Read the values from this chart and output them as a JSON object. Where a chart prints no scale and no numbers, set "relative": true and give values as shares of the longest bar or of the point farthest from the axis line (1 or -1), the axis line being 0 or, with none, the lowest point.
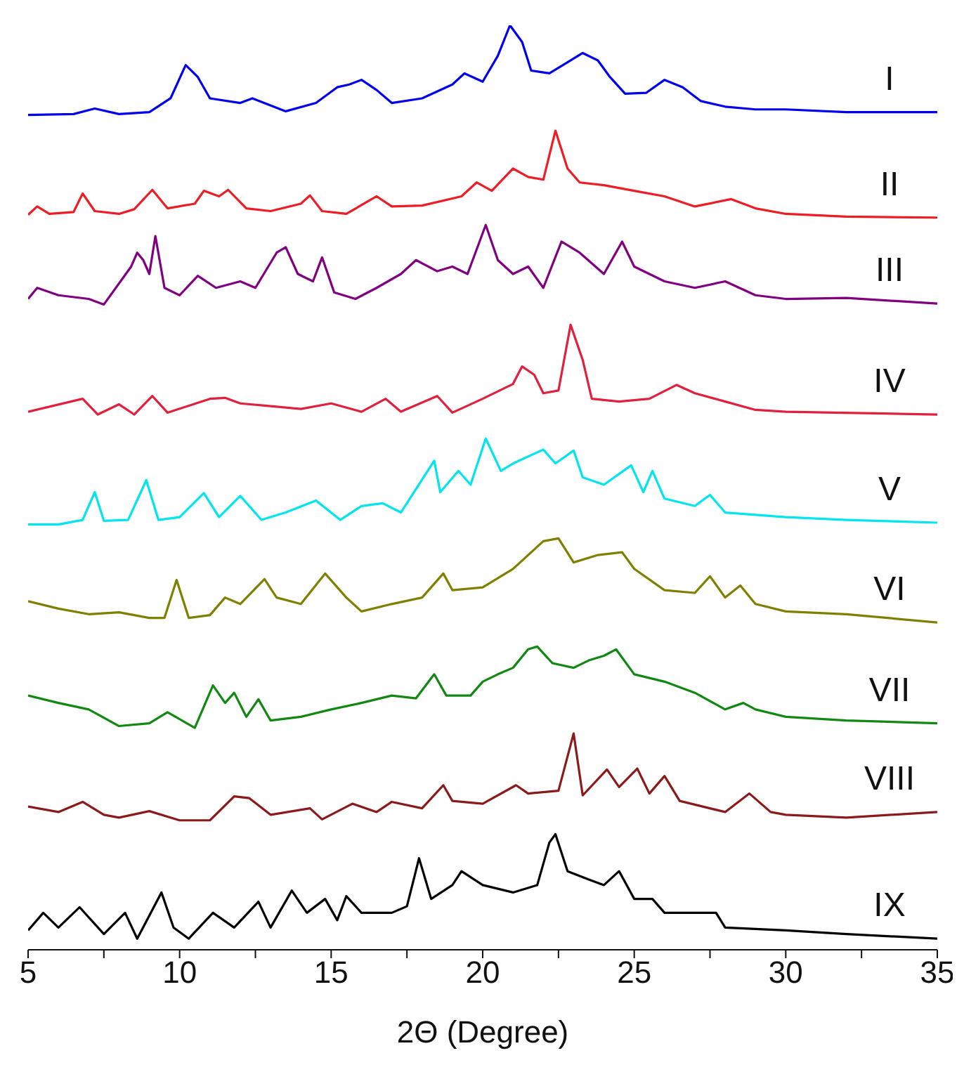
{
  "chart_data": {
    "type": "line",
    "xlabel": "2Θ (Degree)",
    "relative": true,
    "legend": false,
    "marker": "none",
    "line_style": "solid",
    "xlim": [
      5,
      35
    ],
    "xticks": [
      5,
      {
        "value": 7.5,
        "label": null
      },
      10,
      {
        "value": 12.5,
        "label": null
      },
      15,
      {
        "value": 17.5,
        "label": null
      },
      20,
      {
        "value": 22.5,
        "label": null
      },
      25,
      {
        "value": 27.5,
        "label": null
      },
      30,
      {
        "value": 32.5,
        "label": null
      },
      35
    ],
    "series": [
      {
        "name": "I",
        "color": "#0000ee",
        "x": [
          5,
          6.5,
          7.2,
          8,
          9,
          9.7,
          10.2,
          10.6,
          11,
          12,
          12.4,
          13.5,
          14.5,
          15.2,
          15.6,
          16,
          16.5,
          17,
          18,
          19,
          19.4,
          20,
          20.5,
          20.9,
          21.3,
          21.6,
          22.2,
          22.8,
          23.3,
          23.8,
          24.2,
          24.7,
          25.4,
          26,
          26.6,
          27.2,
          28,
          29,
          30,
          32,
          35
        ],
        "values": [
          0.903,
          0.904,
          0.91,
          0.904,
          0.906,
          0.921,
          0.957,
          0.944,
          0.921,
          0.916,
          0.921,
          0.907,
          0.916,
          0.933,
          0.936,
          0.941,
          0.93,
          0.916,
          0.921,
          0.936,
          0.948,
          0.939,
          0.967,
          1,
          0.982,
          0.951,
          0.948,
          0.96,
          0.97,
          0.962,
          0.944,
          0.926,
          0.927,
          0.941,
          0.933,
          0.918,
          0.912,
          0.909,
          0.909,
          0.906,
          0.906
        ]
      },
      {
        "name": "II",
        "color": "#ee1c24",
        "x": [
          5,
          5.3,
          5.7,
          6.5,
          6.8,
          7.2,
          8,
          8.5,
          9.1,
          9.6,
          10.5,
          10.8,
          11.3,
          11.6,
          12.2,
          13,
          14,
          14.3,
          14.7,
          15.5,
          16.5,
          17,
          18,
          19.3,
          19.8,
          20.3,
          21,
          21.5,
          22,
          22.4,
          22.8,
          23.2,
          24,
          25,
          26,
          27,
          28.2,
          29,
          30,
          32,
          35
        ],
        "values": [
          0.795,
          0.804,
          0.796,
          0.798,
          0.818,
          0.799,
          0.796,
          0.801,
          0.822,
          0.802,
          0.807,
          0.821,
          0.815,
          0.822,
          0.802,
          0.799,
          0.807,
          0.816,
          0.799,
          0.796,
          0.815,
          0.804,
          0.805,
          0.815,
          0.83,
          0.821,
          0.845,
          0.836,
          0.833,
          0.886,
          0.845,
          0.83,
          0.827,
          0.821,
          0.815,
          0.804,
          0.812,
          0.802,
          0.796,
          0.793,
          0.792
        ]
      },
      {
        "name": "III",
        "color": "#800080",
        "x": [
          5,
          5.3,
          6,
          7,
          7.5,
          8.4,
          8.6,
          8.8,
          9.0,
          9.2,
          9.5,
          10,
          10.6,
          11.2,
          12,
          12.5,
          13.2,
          13.5,
          13.9,
          14.4,
          14.7,
          15.1,
          15.8,
          16.5,
          17.3,
          17.8,
          18.5,
          19,
          19.5,
          20.1,
          20.5,
          21,
          21.5,
          22,
          22.6,
          23.2,
          24,
          24.6,
          25,
          26,
          27,
          28,
          29,
          30,
          32,
          35
        ],
        "values": [
          0.704,
          0.716,
          0.708,
          0.704,
          0.698,
          0.739,
          0.754,
          0.746,
          0.731,
          0.772,
          0.716,
          0.708,
          0.729,
          0.716,
          0.723,
          0.716,
          0.754,
          0.76,
          0.731,
          0.723,
          0.749,
          0.711,
          0.704,
          0.716,
          0.731,
          0.746,
          0.734,
          0.739,
          0.731,
          0.784,
          0.746,
          0.731,
          0.739,
          0.716,
          0.766,
          0.754,
          0.731,
          0.766,
          0.739,
          0.723,
          0.716,
          0.723,
          0.708,
          0.704,
          0.705,
          0.699
        ]
      },
      {
        "name": "IV",
        "color": "#e0203c",
        "x": [
          5,
          6.8,
          7.3,
          8,
          8.5,
          9.1,
          9.6,
          11,
          11.5,
          12,
          13,
          14,
          15,
          16,
          16.8,
          17.3,
          18.5,
          19,
          20,
          21,
          21.3,
          21.7,
          22,
          22.5,
          22.9,
          23.3,
          23.6,
          24.5,
          25.5,
          26.4,
          27,
          28,
          29,
          30,
          35
        ],
        "values": [
          0.582,
          0.596,
          0.579,
          0.59,
          0.579,
          0.599,
          0.581,
          0.596,
          0.597,
          0.591,
          0.588,
          0.585,
          0.591,
          0.582,
          0.596,
          0.582,
          0.599,
          0.581,
          0.596,
          0.612,
          0.631,
          0.622,
          0.602,
          0.605,
          0.676,
          0.638,
          0.596,
          0.593,
          0.596,
          0.611,
          0.602,
          0.593,
          0.584,
          0.582,
          0.579
        ]
      },
      {
        "name": "V",
        "color": "#00e5ee",
        "x": [
          5,
          6,
          6.8,
          7.2,
          7.5,
          8.3,
          8.9,
          9.3,
          10,
          10.8,
          11.3,
          12,
          12.7,
          13.5,
          14.5,
          15.3,
          16,
          16.7,
          17.3,
          18.4,
          18.6,
          19.2,
          19.6,
          20.1,
          20.6,
          21,
          22,
          22.4,
          23,
          23.3,
          24,
          24.9,
          25.3,
          25.6,
          26,
          27,
          27.5,
          28,
          30,
          32,
          35
        ],
        "values": [
          0.46,
          0.46,
          0.465,
          0.495,
          0.464,
          0.465,
          0.508,
          0.465,
          0.468,
          0.494,
          0.468,
          0.491,
          0.465,
          0.473,
          0.486,
          0.465,
          0.48,
          0.483,
          0.473,
          0.529,
          0.495,
          0.518,
          0.503,
          0.553,
          0.518,
          0.526,
          0.541,
          0.526,
          0.54,
          0.511,
          0.503,
          0.524,
          0.495,
          0.518,
          0.488,
          0.48,
          0.492,
          0.473,
          0.468,
          0.465,
          0.462
        ]
      },
      {
        "name": "VI",
        "color": "#808000",
        "x": [
          5,
          6,
          7,
          8,
          9,
          9.5,
          9.9,
          10.3,
          11,
          11.5,
          12,
          12.8,
          13.2,
          14,
          14.8,
          15.5,
          16,
          17,
          18,
          18.7,
          19,
          20,
          21,
          22,
          22.5,
          23,
          23.8,
          24.6,
          25,
          26,
          27,
          27.5,
          28,
          28.5,
          29,
          30,
          32,
          35
        ],
        "values": [
          0.377,
          0.369,
          0.363,
          0.365,
          0.359,
          0.359,
          0.4,
          0.359,
          0.362,
          0.381,
          0.374,
          0.401,
          0.381,
          0.374,
          0.407,
          0.381,
          0.366,
          0.374,
          0.381,
          0.407,
          0.389,
          0.392,
          0.412,
          0.442,
          0.445,
          0.419,
          0.427,
          0.43,
          0.412,
          0.389,
          0.386,
          0.404,
          0.381,
          0.394,
          0.374,
          0.366,
          0.363,
          0.354
        ]
      },
      {
        "name": "VII",
        "color": "#118811",
        "x": [
          5,
          6,
          7,
          8,
          9,
          9.6,
          10.5,
          11.1,
          11.5,
          11.8,
          12.2,
          12.6,
          13,
          14,
          15,
          16,
          17,
          17.8,
          18.4,
          18.8,
          19.6,
          20,
          20.5,
          21,
          21.5,
          21.8,
          22.3,
          23,
          23.5,
          24,
          24.4,
          25,
          26,
          27,
          28,
          28.6,
          29,
          30,
          32,
          35
        ],
        "values": [
          0.275,
          0.267,
          0.26,
          0.242,
          0.245,
          0.257,
          0.24,
          0.286,
          0.267,
          0.278,
          0.252,
          0.271,
          0.248,
          0.252,
          0.26,
          0.267,
          0.275,
          0.272,
          0.298,
          0.275,
          0.275,
          0.29,
          0.298,
          0.305,
          0.325,
          0.328,
          0.31,
          0.305,
          0.313,
          0.318,
          0.325,
          0.298,
          0.29,
          0.278,
          0.26,
          0.267,
          0.26,
          0.252,
          0.248,
          0.245
        ]
      },
      {
        "name": "VIII",
        "color": "#8b1a1a",
        "x": [
          5,
          6,
          6.8,
          7.5,
          8,
          9,
          10,
          11,
          11.8,
          12.3,
          13,
          14.3,
          14.7,
          15.7,
          16.5,
          17,
          18,
          18.7,
          19,
          20,
          21.1,
          21.5,
          22.5,
          23,
          23.3,
          24.1,
          24.5,
          25.1,
          25.5,
          26,
          26.5,
          28,
          28.8,
          29.5,
          30,
          32,
          35
        ],
        "values": [
          0.155,
          0.149,
          0.16,
          0.146,
          0.143,
          0.15,
          0.14,
          0.14,
          0.166,
          0.164,
          0.146,
          0.153,
          0.141,
          0.158,
          0.149,
          0.16,
          0.153,
          0.178,
          0.161,
          0.158,
          0.178,
          0.169,
          0.172,
          0.234,
          0.167,
          0.195,
          0.176,
          0.196,
          0.169,
          0.188,
          0.161,
          0.149,
          0.169,
          0.149,
          0.146,
          0.143,
          0.149
        ]
      },
      {
        "name": "IX",
        "color": "#000000",
        "x": [
          5,
          5.5,
          6,
          6.7,
          7.5,
          8.2,
          8.6,
          9.4,
          9.8,
          10.3,
          11.1,
          11.8,
          12.6,
          13,
          13.7,
          14.2,
          14.8,
          15.2,
          15.5,
          16,
          17,
          17.5,
          17.9,
          18.3,
          19,
          19.3,
          20,
          21,
          21.8,
          22.2,
          22.4,
          22.8,
          23.5,
          24,
          24.5,
          25,
          25.6,
          26,
          27,
          27.7,
          28,
          30,
          32,
          35
        ],
        "values": [
          0.021,
          0.04,
          0.024,
          0.046,
          0.017,
          0.04,
          0.012,
          0.062,
          0.024,
          0.012,
          0.04,
          0.024,
          0.052,
          0.024,
          0.064,
          0.04,
          0.055,
          0.032,
          0.058,
          0.04,
          0.04,
          0.047,
          0.099,
          0.055,
          0.07,
          0.085,
          0.07,
          0.062,
          0.07,
          0.116,
          0.125,
          0.085,
          0.076,
          0.07,
          0.085,
          0.055,
          0.055,
          0.04,
          0.04,
          0.04,
          0.024,
          0.021,
          0.017,
          0.012
        ]
      }
    ]
  }
}
